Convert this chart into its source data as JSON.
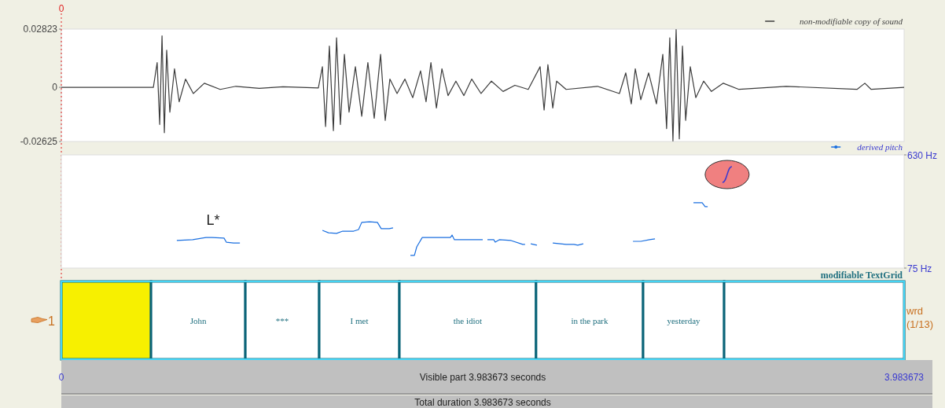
{
  "chart_data": [
    {
      "type": "line",
      "xlim": [
        0,
        3.983673
      ],
      "ylim": [
        -0.02625,
        0.02823
      ],
      "yticks": [
        0.02823,
        0,
        -0.02625
      ],
      "tick_labels": "y",
      "legend": "top right",
      "ref_lines": [
        {
          "axis": "x",
          "value": 0,
          "label": "0",
          "color": "#e02020",
          "line_style": "dotted"
        }
      ],
      "series": [
        {
          "name": "non-modifiable copy of sound",
          "color": "#3c3c3c",
          "x": [
            0,
            0.435,
            0.453,
            0.465,
            0.476,
            0.487,
            0.498,
            0.513,
            0.535,
            0.557,
            0.587,
            0.624,
            0.676,
            0.751,
            0.825,
            0.936,
            1.048,
            1.215,
            1.234,
            1.249,
            1.267,
            1.286,
            1.301,
            1.319,
            1.338,
            1.36,
            1.39,
            1.42,
            1.449,
            1.479,
            1.509,
            1.531,
            1.553,
            1.587,
            1.624,
            1.661,
            1.698,
            1.724,
            1.747,
            1.773,
            1.799,
            1.828,
            1.865,
            1.903,
            1.94,
            1.984,
            2.033,
            2.088,
            2.144,
            2.207,
            2.263,
            2.282,
            2.3,
            2.323,
            2.341,
            2.386,
            2.534,
            2.638,
            2.668,
            2.694,
            2.713,
            2.739,
            2.776,
            2.813,
            2.843,
            2.861,
            2.876,
            2.891,
            2.906,
            2.921,
            2.936,
            2.951,
            2.973,
            2.999,
            3.036,
            3.073,
            3.129,
            3.203,
            3.426,
            3.761,
            3.798,
            3.828,
            3.983673
          ],
          "values": [
            0,
            0,
            0.012,
            -0.018,
            0.025,
            -0.022,
            0.018,
            -0.012,
            0.009,
            -0.007,
            0.004,
            -0.003,
            0.002,
            -0.001,
            0.0005,
            -0.0005,
            0.0003,
            -0.0003,
            0.01,
            -0.019,
            0.02,
            -0.021,
            0.024,
            -0.018,
            0.016,
            -0.012,
            0.01,
            -0.014,
            0.012,
            -0.015,
            0.016,
            -0.016,
            0.004,
            -0.003,
            0.004,
            -0.005,
            0.008,
            -0.007,
            0.012,
            -0.01,
            0.009,
            -0.004,
            0.003,
            -0.004,
            0.004,
            -0.003,
            0.003,
            -0.002,
            0.001,
            -0.001,
            0.01,
            -0.011,
            0.011,
            -0.01,
            0.003,
            -0.001,
            0.0005,
            -0.003,
            0.007,
            -0.008,
            0.009,
            -0.006,
            0.007,
            -0.008,
            0.016,
            -0.02,
            0.024,
            -0.026,
            0.028,
            -0.025,
            0.02,
            -0.016,
            0.01,
            -0.005,
            0.003,
            -0.002,
            0.002,
            -0.001,
            0.0005,
            -0.001,
            0.002,
            -0.001,
            0
          ]
        }
      ]
    },
    {
      "type": "line",
      "xlim": [
        0,
        3.983673
      ],
      "ylim": [
        75,
        630
      ],
      "yticks": [
        {
          "value": 630,
          "label": "630 Hz"
        },
        {
          "value": 75,
          "label": "75 Hz"
        }
      ],
      "tick_labels": "y",
      "legend": "top right",
      "annotations": [
        "L*"
      ],
      "series": [
        {
          "name": "derived pitch",
          "color": "#1a6fe0",
          "x": [
            0.546,
            0.621,
            0.684,
            0.713,
            0.769,
            0.78,
            0.814,
            0.844,
            1.0,
            1.234,
            1.263,
            1.301,
            1.33,
            1.382,
            1.405,
            1.42,
            1.457,
            1.494,
            1.512,
            1.55,
            1.568,
            1.6,
            1.65,
            1.669,
            1.68,
            1.706,
            1.791,
            1.839,
            1.847,
            1.858,
            1.94,
            1.992,
            2.0,
            2.014,
            2.044,
            2.051,
            2.07,
            2.126,
            2.181,
            2.192,
            2.2,
            2.219,
            2.248,
            2.3,
            2.323,
            2.386,
            2.423,
            2.441,
            2.467,
            2.6,
            2.702,
            2.739,
            2.78,
            2.806,
            2.9,
            2.988,
            3.029,
            3.043,
            3.055
          ],
          "values": [
            210,
            214,
            225,
            225,
            222,
            202,
            198,
            198,
            null,
            260,
            248,
            245,
            256,
            256,
            264,
            299,
            302,
            299,
            268,
            268,
            272,
            null,
            137,
            137,
            179,
            225,
            225,
            225,
            237,
            214,
            214,
            214,
            null,
            214,
            214,
            202,
            214,
            210,
            191,
            191,
            null,
            194,
            187,
            null,
            198,
            191,
            191,
            187,
            194,
            null,
            206,
            206,
            214,
            218,
            null,
            395,
            395,
            376,
            376
          ]
        }
      ]
    },
    {
      "type": "bar",
      "orientation": "horizontal",
      "stacked": true,
      "title": "modifiable TextGrid",
      "xlabel": "Visible part 3.983673 seconds",
      "y2label": "wrd (1/13)",
      "xlim": [
        0,
        3.983673
      ],
      "xticks": [
        0,
        3.983673
      ],
      "categories": [
        "1"
      ],
      "annotations": [
        "Total duration 3.983673 seconds"
      ],
      "series": [
        {
          "color": "#f7f000",
          "values": [
            0.424
          ]
        },
        {
          "name": "John",
          "color": "#ffffff",
          "values": [
            0.446
          ]
        },
        {
          "name": "***",
          "color": "#ffffff",
          "values": [
            0.349
          ]
        },
        {
          "name": "I met",
          "color": "#ffffff",
          "values": [
            0.379
          ]
        },
        {
          "name": "the idiot",
          "color": "#ffffff",
          "values": [
            0.646
          ]
        },
        {
          "name": "in the park",
          "color": "#ffffff",
          "values": [
            0.506
          ]
        },
        {
          "name": "yesterday",
          "color": "#ffffff",
          "values": [
            0.383
          ]
        },
        {
          "color": "#ffffff",
          "values": [
            0.851
          ]
        }
      ]
    }
  ]
}
